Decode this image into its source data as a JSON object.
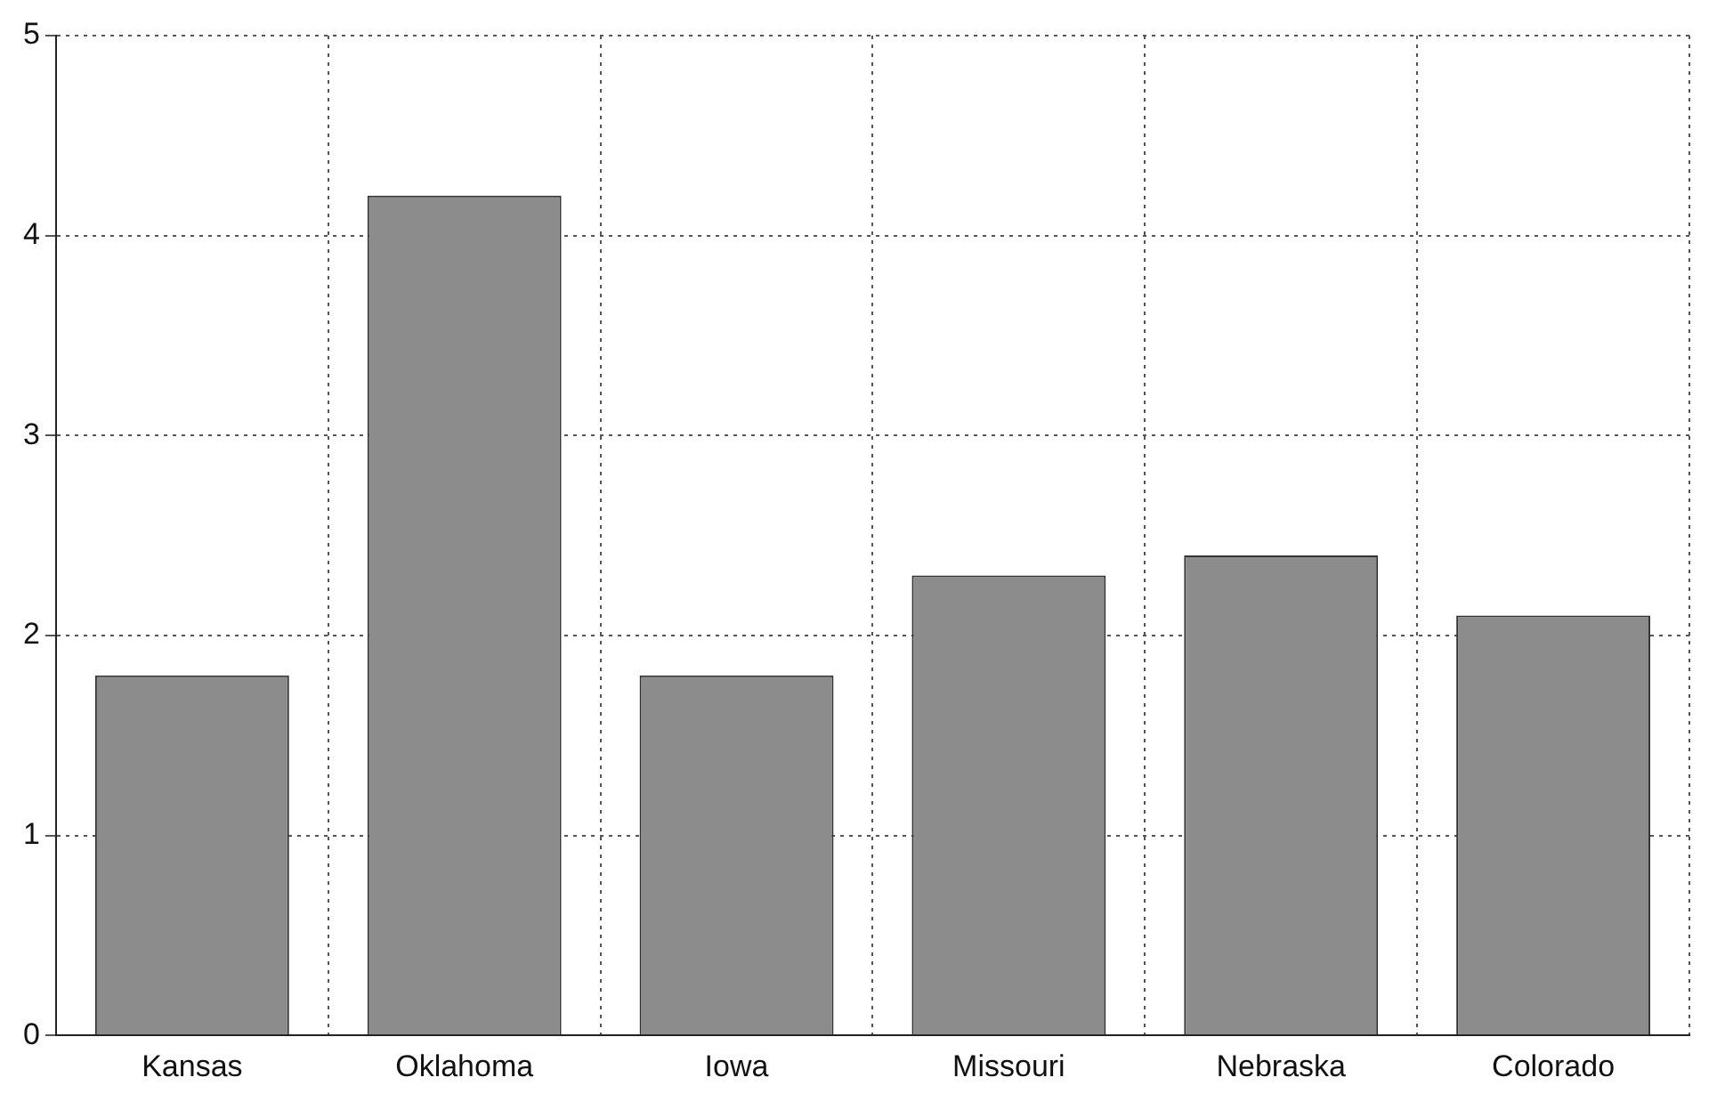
{
  "chart_data": {
    "type": "bar",
    "categories": [
      "Kansas",
      "Oklahoma",
      "Iowa",
      "Missouri",
      "Nebraska",
      "Colorado"
    ],
    "values": [
      1.8,
      4.2,
      1.8,
      2.3,
      2.4,
      2.1
    ],
    "color": "#8c8c8c",
    "ylim": [
      0,
      5
    ],
    "yticks": [
      0,
      1,
      2,
      3,
      4,
      5
    ],
    "grid": true,
    "legend": false
  }
}
